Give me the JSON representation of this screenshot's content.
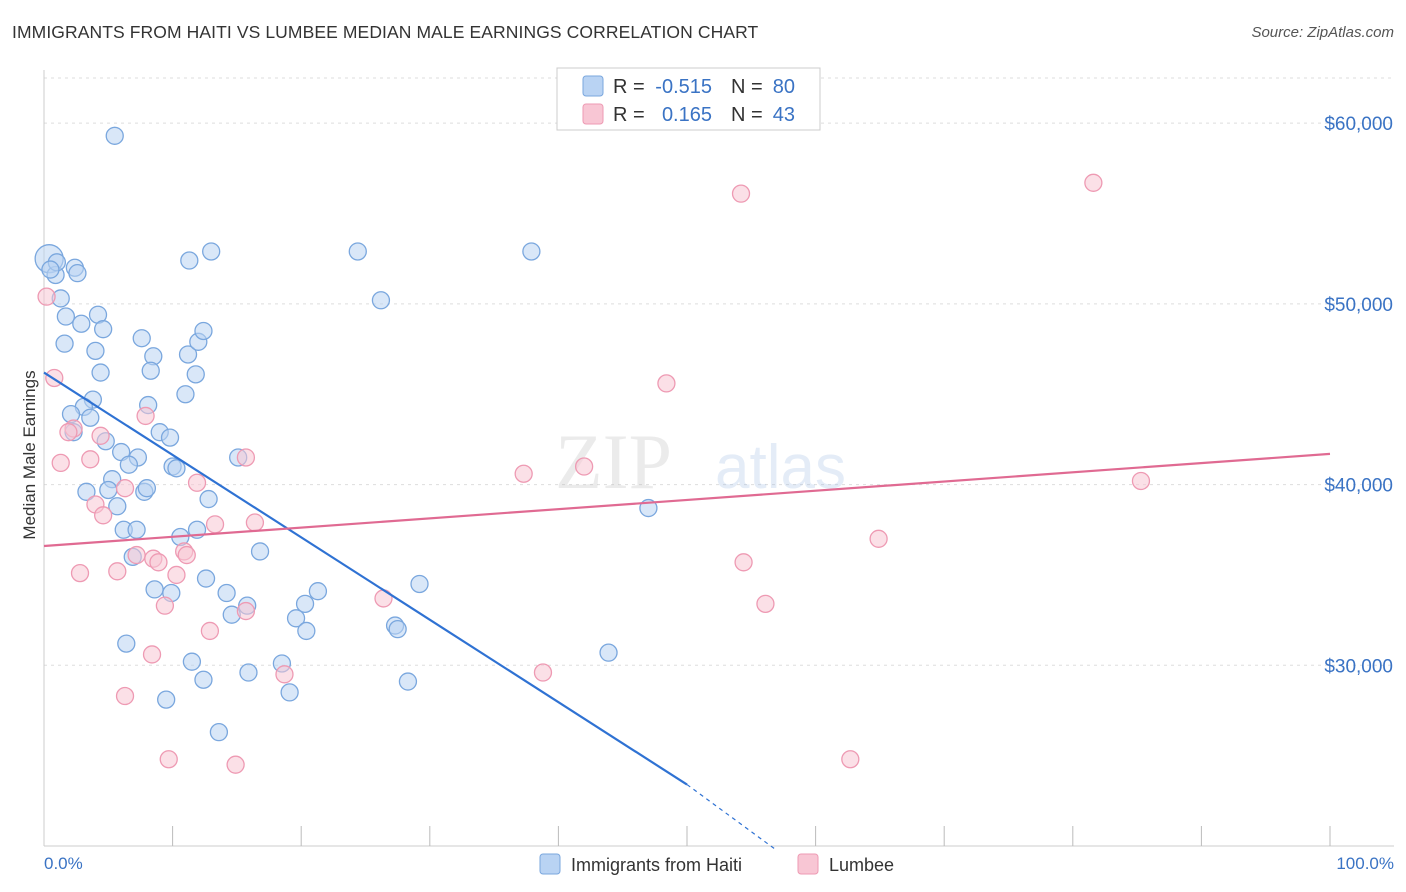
{
  "title": "IMMIGRANTS FROM HAITI VS LUMBEE MEDIAN MALE EARNINGS CORRELATION CHART",
  "source": "Source: ZipAtlas.com",
  "watermark": {
    "zip": "ZIP",
    "atlas": "atlas"
  },
  "colors": {
    "blue_fill": "#b9d3f3",
    "blue_stroke": "#7aa7de",
    "blue_line": "#2f72d3",
    "pink_fill": "#f8c6d4",
    "pink_stroke": "#ee9ab3",
    "pink_line": "#e06a92",
    "tick_text": "#3a73c4",
    "grid": "#dddddd"
  },
  "legend": {
    "r_label": "R =",
    "n_label": "N =",
    "entries": [
      {
        "series": "Immigrants from Haiti",
        "r": "-0.515",
        "n": "80"
      },
      {
        "series": "Lumbee",
        "r": "0.165",
        "n": "43"
      }
    ]
  },
  "chart_data": {
    "type": "scatter",
    "title": "IMMIGRANTS FROM HAITI VS LUMBEE MEDIAN MALE EARNINGS CORRELATION CHART",
    "xlabel": "",
    "ylabel": "Median Male Earnings",
    "xlim": [
      0,
      100
    ],
    "ylim": [
      20000,
      62500
    ],
    "x_tick_labels": [
      "0.0%",
      "100.0%"
    ],
    "y_ticks": [
      30000,
      40000,
      50000,
      60000
    ],
    "y_tick_labels": [
      "$30,000",
      "$40,000",
      "$50,000",
      "$60,000"
    ],
    "grid": true,
    "legend_position": "bottom-center",
    "series": [
      {
        "name": "Immigrants from Haiti",
        "r": -0.515,
        "n": 80,
        "trend": {
          "x": [
            0,
            50
          ],
          "y": [
            46200,
            23400
          ],
          "dashed_to": [
            56.9,
            19800
          ]
        },
        "points": [
          [
            5.5,
            59300
          ],
          [
            0.4,
            52500
          ],
          [
            0.9,
            51600
          ],
          [
            1.0,
            52300
          ],
          [
            0.5,
            51900
          ],
          [
            2.4,
            52000
          ],
          [
            2.6,
            51700
          ],
          [
            1.3,
            50300
          ],
          [
            1.7,
            49300
          ],
          [
            2.9,
            48900
          ],
          [
            4.2,
            49400
          ],
          [
            4.6,
            48600
          ],
          [
            1.6,
            47800
          ],
          [
            4.0,
            47400
          ],
          [
            7.6,
            48100
          ],
          [
            8.5,
            47100
          ],
          [
            8.3,
            46300
          ],
          [
            11.2,
            47200
          ],
          [
            12.0,
            47900
          ],
          [
            12.4,
            48500
          ],
          [
            11.8,
            46100
          ],
          [
            4.4,
            46200
          ],
          [
            11.0,
            45000
          ],
          [
            3.8,
            44700
          ],
          [
            8.1,
            44400
          ],
          [
            3.1,
            44300
          ],
          [
            2.1,
            43900
          ],
          [
            3.6,
            43700
          ],
          [
            2.3,
            42900
          ],
          [
            9.0,
            42900
          ],
          [
            9.8,
            42600
          ],
          [
            4.8,
            42400
          ],
          [
            6.0,
            41800
          ],
          [
            7.3,
            41500
          ],
          [
            6.6,
            41100
          ],
          [
            10.0,
            41000
          ],
          [
            10.3,
            40900
          ],
          [
            15.1,
            41500
          ],
          [
            5.3,
            40300
          ],
          [
            5.0,
            39700
          ],
          [
            3.3,
            39600
          ],
          [
            7.8,
            39600
          ],
          [
            8.0,
            39800
          ],
          [
            12.8,
            39200
          ],
          [
            5.7,
            38800
          ],
          [
            6.2,
            37500
          ],
          [
            7.2,
            37500
          ],
          [
            10.6,
            37100
          ],
          [
            11.9,
            37500
          ],
          [
            16.8,
            36300
          ],
          [
            6.9,
            36000
          ],
          [
            12.6,
            34800
          ],
          [
            8.6,
            34200
          ],
          [
            9.9,
            34000
          ],
          [
            14.2,
            34000
          ],
          [
            21.3,
            34100
          ],
          [
            29.2,
            34500
          ],
          [
            20.3,
            33400
          ],
          [
            15.8,
            33300
          ],
          [
            14.6,
            32800
          ],
          [
            19.6,
            32600
          ],
          [
            27.3,
            32200
          ],
          [
            27.5,
            32000
          ],
          [
            20.4,
            31900
          ],
          [
            6.4,
            31200
          ],
          [
            11.5,
            30200
          ],
          [
            18.5,
            30100
          ],
          [
            15.9,
            29600
          ],
          [
            12.4,
            29200
          ],
          [
            28.3,
            29100
          ],
          [
            19.1,
            28500
          ],
          [
            9.5,
            28100
          ],
          [
            13.6,
            26300
          ],
          [
            47.0,
            38700
          ],
          [
            37.9,
            52900
          ],
          [
            24.4,
            52900
          ],
          [
            13.0,
            52900
          ],
          [
            11.3,
            52400
          ],
          [
            26.2,
            50200
          ],
          [
            43.9,
            30700
          ]
        ]
      },
      {
        "name": "Lumbee",
        "r": 0.165,
        "n": 43,
        "trend": {
          "x": [
            0,
            100
          ],
          "y": [
            36600,
            41700
          ]
        },
        "points": [
          [
            0.2,
            50400
          ],
          [
            0.8,
            45900
          ],
          [
            2.3,
            43100
          ],
          [
            1.9,
            42900
          ],
          [
            1.3,
            41200
          ],
          [
            3.6,
            41400
          ],
          [
            4.4,
            42700
          ],
          [
            7.9,
            43800
          ],
          [
            4.0,
            38900
          ],
          [
            4.6,
            38300
          ],
          [
            6.3,
            39800
          ],
          [
            5.7,
            35200
          ],
          [
            2.8,
            35100
          ],
          [
            7.2,
            36100
          ],
          [
            8.5,
            35900
          ],
          [
            8.9,
            35700
          ],
          [
            10.3,
            35000
          ],
          [
            10.9,
            36300
          ],
          [
            11.1,
            36100
          ],
          [
            13.3,
            37800
          ],
          [
            16.4,
            37900
          ],
          [
            11.9,
            40100
          ],
          [
            15.7,
            41500
          ],
          [
            9.4,
            33300
          ],
          [
            12.9,
            31900
          ],
          [
            15.7,
            33000
          ],
          [
            8.4,
            30600
          ],
          [
            6.3,
            28300
          ],
          [
            18.7,
            29500
          ],
          [
            9.7,
            24800
          ],
          [
            14.9,
            24500
          ],
          [
            26.4,
            33700
          ],
          [
            37.3,
            40600
          ],
          [
            42.0,
            41000
          ],
          [
            38.8,
            29600
          ],
          [
            48.4,
            45600
          ],
          [
            54.2,
            56100
          ],
          [
            54.4,
            35700
          ],
          [
            56.1,
            33400
          ],
          [
            64.9,
            37000
          ],
          [
            62.7,
            24800
          ],
          [
            81.6,
            56700
          ],
          [
            85.3,
            40200
          ]
        ]
      }
    ]
  }
}
